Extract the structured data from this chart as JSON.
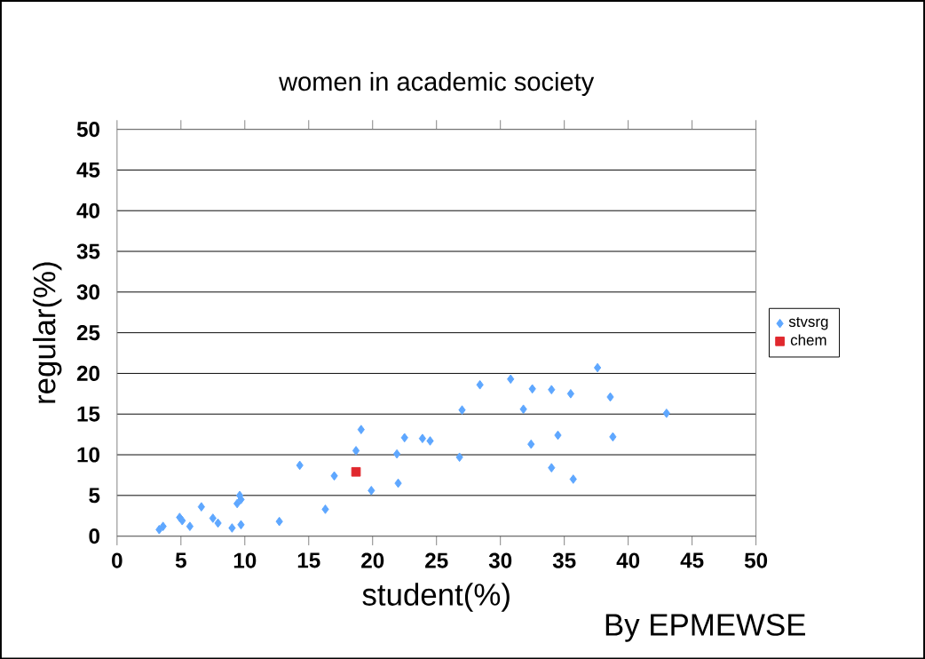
{
  "chart_data": {
    "type": "scatter",
    "title": "women in academic society",
    "xlabel": "student(%)",
    "ylabel": "regular(%)",
    "xlim": [
      0,
      50
    ],
    "ylim": [
      0,
      50
    ],
    "xticks": [
      0,
      5,
      10,
      15,
      20,
      25,
      30,
      35,
      40,
      45,
      50
    ],
    "yticks": [
      0,
      5,
      10,
      15,
      20,
      25,
      30,
      35,
      40,
      45,
      50
    ],
    "grid": "y",
    "legend": "right",
    "annotations": [
      "By EPMEWSE"
    ],
    "series": [
      {
        "name": "stvsrg",
        "color": "#5ea7ff",
        "marker": "diamond",
        "x": [
          3.3,
          3.6,
          4.9,
          5.1,
          5.7,
          6.6,
          7.5,
          7.9,
          9.0,
          9.4,
          9.6,
          9.7,
          9.7,
          12.7,
          14.3,
          16.3,
          17.0,
          18.7,
          19.1,
          19.9,
          21.9,
          22.0,
          22.5,
          23.9,
          24.5,
          26.8,
          27.0,
          28.4,
          30.8,
          31.8,
          32.5,
          32.4,
          34.0,
          34.0,
          34.5,
          35.5,
          35.7,
          37.6,
          38.6,
          38.8,
          43.0
        ],
        "values": [
          0.8,
          1.2,
          2.3,
          1.9,
          1.2,
          3.6,
          2.2,
          1.6,
          1.0,
          4.0,
          5.0,
          4.5,
          1.4,
          1.8,
          8.7,
          3.3,
          7.4,
          10.5,
          13.1,
          5.6,
          10.1,
          6.5,
          12.1,
          12.0,
          11.7,
          9.7,
          15.5,
          18.6,
          19.3,
          15.6,
          18.1,
          11.3,
          18.0,
          8.4,
          12.4,
          17.5,
          7.0,
          20.7,
          17.1,
          12.2,
          15.1
        ]
      },
      {
        "name": "chem",
        "color": "#e0282e",
        "marker": "square",
        "x": [
          18.7
        ],
        "values": [
          7.9
        ]
      }
    ]
  }
}
